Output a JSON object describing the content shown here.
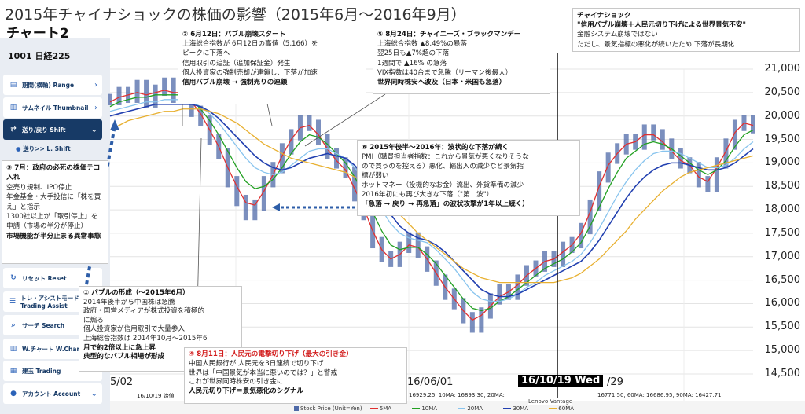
{
  "title": "2015年チャイナショックの株価の影響（2015年6月～2016年9月）",
  "subtitle": "チャート2",
  "app": {
    "ticker": "1001 日経225",
    "menu": [
      {
        "label": "期間(横軸) Range",
        "icon": "calendar-icon",
        "active": false
      },
      {
        "label": "サムネイル Thumbnail",
        "icon": "chart-icon",
        "active": false
      },
      {
        "label": "送り/戻り Shift",
        "icon": "shift-icon",
        "active": true
      },
      {
        "label": "リセット Reset",
        "icon": "reset-icon",
        "active": false
      },
      {
        "label": "トレ・アシストモード Trading Assist",
        "icon": "assist-icon",
        "active": false
      },
      {
        "label": "サーチ Search",
        "icon": "search-icon",
        "active": false
      },
      {
        "label": "W.チャート W.Chart",
        "icon": "chart-icon",
        "active": false
      },
      {
        "label": "建玉 Trading",
        "icon": "trade-icon",
        "active": false
      },
      {
        "label": "アカウント Account",
        "icon": "account-icon",
        "active": false
      }
    ],
    "submenu": "送り>> L. Shift",
    "footer_date": "16/10/19 始値",
    "footer_ma": "16929.25, 10MA: 16893.30, 20MA:",
    "footer_ma2": "16771.50, 60MA: 16686.95, 90MA: 16427.71",
    "vantage": "Lenovo Vantage",
    "date_chip": "16/10/19 Wed",
    "date_tail": "/29",
    "date_left": "5/02",
    "date_mid": "16/06/01"
  },
  "legend": [
    {
      "label": "Stock Price (Unit=Yen)",
      "color": "#4f6aa8"
    },
    {
      "label": "5MA",
      "color": "#e03030"
    },
    {
      "label": "10MA",
      "color": "#22a022"
    },
    {
      "label": "20MA",
      "color": "#88c4ee"
    },
    {
      "label": "30MA",
      "color": "#2240b0"
    },
    {
      "label": "60MA",
      "color": "#e8b030"
    }
  ],
  "notes": {
    "n1": {
      "head": "① バブルの形成（～2015年6月）",
      "lines": [
        "2014年後半から中国株は急騰",
        "政府・国営メディアが株式投資を積極的",
        "に煽る",
        "個人投資家が信用取引で大量参入",
        "上海総合指数は 2014年10月～2015年6",
        "月で約2倍以上に急上昇",
        "典型的なバブル相場が形成"
      ]
    },
    "n2": {
      "head": "② 6月12日：バブル崩壊スタート",
      "lines": [
        "上海総合指数が 6月12日の高値（5,166）を",
        "ピークに下落へ",
        "信用取引の追証（追加保証金）発生",
        "個人投資家の強制売却が連鎖し、下落が加速",
        "信用バブル崩壊 → 強制売りの連鎖"
      ]
    },
    "n3": {
      "head": "③ 7月：政府の必死の株価テコ入れ",
      "lines": [
        "空売り規制、IPO停止",
        "年金基金・大手投信に「株を買え」と指示",
        "1300社以上が「取引停止」を申請（市場の半分が停止）",
        "市場機能が半分止まる異常事態"
      ]
    },
    "n4": {
      "head": "④ 8月11日：人民元の電撃切り下げ（最大の引き金）",
      "lines": [
        "中国人民銀行が 人民元を3日連続で切り下げ",
        "世界は「中国景気が本当に悪いのでは？」と警戒",
        "これが世界同時株安の引き金に",
        "人民元切り下げ＝景気悪化のシグナル"
      ]
    },
    "n5": {
      "head": "⑤ 8月24日：チャイニーズ・ブラックマンデー",
      "lines": [
        "上海総合指数 ▲8.49%の暴落",
        "翌25日も▲7%超の下落",
        "1週間で ▲16% の急落",
        "VIX指数は40台まで急騰（リーマン後最大）",
        "世界同時株安へ波及（日本・米国も急落）"
      ]
    },
    "n6": {
      "head": "⑥ 2015年後半～2016年：波状的な下落が続く",
      "lines": [
        "PMI（購買担当者指数：これから景気が悪くなりそうな",
        "ので買うのを控える）悪化、輸出入の減少など景気指",
        "標が弱い",
        "ホットマネー（投機的なお金）流出、外貨準備の減少",
        "2016年初にも再び大きな下落（\"第二波\"）",
        "「急落 → 戻り → 再急落」の波状攻撃が1年以上続く）"
      ]
    },
    "n7": {
      "head": "チャイナショック",
      "lines": [
        "\"信用バブル崩壊＋人民元切り下げによる世界景気不安\"",
        "金融システム崩壊ではない",
        "ただし、景気指標の悪化が続いたため 下落が長期化"
      ]
    }
  },
  "chart_data": {
    "type": "line",
    "title": "",
    "xlabel": "",
    "ylabel": "",
    "ylim": [
      14500,
      21000
    ],
    "yticks": [
      14500,
      15000,
      15500,
      16000,
      16500,
      17000,
      17500,
      18000,
      18500,
      19000,
      19500,
      20000,
      20500,
      21000
    ],
    "ytick_labels": [
      "14,500",
      "15,000",
      "15,500",
      "16,000",
      "16,500",
      "17,000",
      "17,500",
      "18,000",
      "18,500",
      "19,000",
      "19,500",
      "20,000",
      "20,500",
      "21,000"
    ],
    "grid": true,
    "series": [
      {
        "name": "Stock Price (Unit=Yen)",
        "color": "#4f6aa8",
        "values": [
          20350,
          20500,
          20400,
          20650,
          20300,
          20550,
          20700,
          20400,
          20600,
          20100,
          19900,
          19500,
          19200,
          18600,
          18200,
          17900,
          18100,
          18600,
          18900,
          19300,
          19600,
          19900,
          19800,
          19500,
          19200,
          19000,
          18800,
          18300,
          17900,
          17300,
          17000,
          16900,
          17200,
          17400,
          17100,
          16800,
          16500,
          16200,
          16000,
          15700,
          15500,
          15800,
          16100,
          16300,
          16200,
          16500,
          16700,
          16800,
          17000,
          16900,
          17200,
          17300,
          17600,
          18100,
          18700,
          19100,
          19300,
          19500,
          19400,
          19700,
          19600,
          19400,
          19200,
          19000,
          18900,
          18600,
          18500,
          19000,
          19400,
          19800,
          19900,
          19750
        ]
      },
      {
        "name": "5MA",
        "color": "#e03030",
        "values": [
          20300,
          20400,
          20450,
          20500,
          20450,
          20500,
          20550,
          20500,
          20500,
          20300,
          20050,
          19700,
          19350,
          18900,
          18500,
          18150,
          18100,
          18400,
          18750,
          19150,
          19500,
          19750,
          19800,
          19600,
          19300,
          19050,
          18850,
          18450,
          18050,
          17550,
          17150,
          16950,
          17050,
          17250,
          17200,
          16950,
          16650,
          16350,
          16100,
          15850,
          15650,
          15750,
          15950,
          16150,
          16250,
          16400,
          16600,
          16750,
          16900,
          16950,
          17100,
          17250,
          17500,
          17950,
          18500,
          18950,
          19200,
          19400,
          19450,
          19600,
          19600,
          19450,
          19250,
          19050,
          18950,
          18700,
          18600,
          18900,
          19250,
          19650,
          19850,
          19800
        ]
      },
      {
        "name": "10MA",
        "color": "#22a022",
        "values": [
          20200,
          20300,
          20350,
          20400,
          20400,
          20450,
          20450,
          20450,
          20450,
          20350,
          20150,
          19900,
          19600,
          19250,
          18900,
          18600,
          18450,
          18500,
          18650,
          18900,
          19200,
          19450,
          19600,
          19550,
          19400,
          19200,
          19000,
          18700,
          18350,
          17950,
          17550,
          17250,
          17150,
          17200,
          17200,
          17050,
          16850,
          16600,
          16350,
          16100,
          15900,
          15850,
          15900,
          16050,
          16150,
          16300,
          16450,
          16600,
          16750,
          16850,
          16950,
          17100,
          17300,
          17650,
          18050,
          18450,
          18800,
          19100,
          19250,
          19400,
          19450,
          19400,
          19300,
          19150,
          19000,
          18850,
          18750,
          18850,
          19050,
          19350,
          19600,
          19700
        ]
      },
      {
        "name": "20MA",
        "color": "#88c4ee",
        "values": [
          20100,
          20150,
          20200,
          20250,
          20300,
          20300,
          20350,
          20350,
          20350,
          20300,
          20200,
          20050,
          19850,
          19600,
          19350,
          19100,
          18900,
          18800,
          18750,
          18800,
          18950,
          19100,
          19250,
          19300,
          19300,
          19200,
          19100,
          18900,
          18650,
          18350,
          18000,
          17700,
          17500,
          17400,
          17350,
          17300,
          17150,
          16950,
          16750,
          16500,
          16250,
          16100,
          16050,
          16050,
          16100,
          16200,
          16350,
          16450,
          16600,
          16700,
          16800,
          16900,
          17050,
          17300,
          17600,
          17950,
          18300,
          18600,
          18850,
          19050,
          19200,
          19250,
          19250,
          19200,
          19100,
          19000,
          18900,
          18900,
          18950,
          19100,
          19300,
          19450
        ]
      },
      {
        "name": "30MA",
        "color": "#2240b0",
        "values": [
          20000,
          20050,
          20100,
          20150,
          20200,
          20250,
          20250,
          20250,
          20250,
          20250,
          20200,
          20100,
          19950,
          19750,
          19550,
          19350,
          19150,
          19000,
          18900,
          18850,
          18900,
          19000,
          19100,
          19150,
          19200,
          19150,
          19100,
          18950,
          18750,
          18500,
          18200,
          17900,
          17650,
          17500,
          17400,
          17350,
          17250,
          17100,
          16900,
          16700,
          16500,
          16300,
          16200,
          16150,
          16150,
          16200,
          16300,
          16400,
          16500,
          16600,
          16700,
          16800,
          16900,
          17100,
          17350,
          17650,
          17950,
          18250,
          18500,
          18700,
          18850,
          18950,
          19000,
          19000,
          18950,
          18900,
          18850,
          18850,
          18900,
          19000,
          19150,
          19300
        ]
      },
      {
        "name": "60MA",
        "color": "#e8b030",
        "values": [
          19700,
          19800,
          19900,
          19950,
          20000,
          20050,
          20100,
          20100,
          20150,
          20150,
          20150,
          20100,
          20050,
          19950,
          19850,
          19700,
          19550,
          19400,
          19300,
          19200,
          19100,
          19050,
          19000,
          18950,
          18900,
          18850,
          18800,
          18700,
          18600,
          18450,
          18300,
          18100,
          17900,
          17700,
          17500,
          17350,
          17200,
          17050,
          16900,
          16750,
          16650,
          16550,
          16500,
          16450,
          16450,
          16450,
          16450,
          16450,
          16450,
          16450,
          16500,
          16550,
          16650,
          16800,
          16950,
          17150,
          17350,
          17550,
          17800,
          18000,
          18200,
          18400,
          18550,
          18700,
          18800,
          18850,
          18900,
          18950,
          19000,
          19050,
          19100,
          19150
        ]
      }
    ]
  }
}
